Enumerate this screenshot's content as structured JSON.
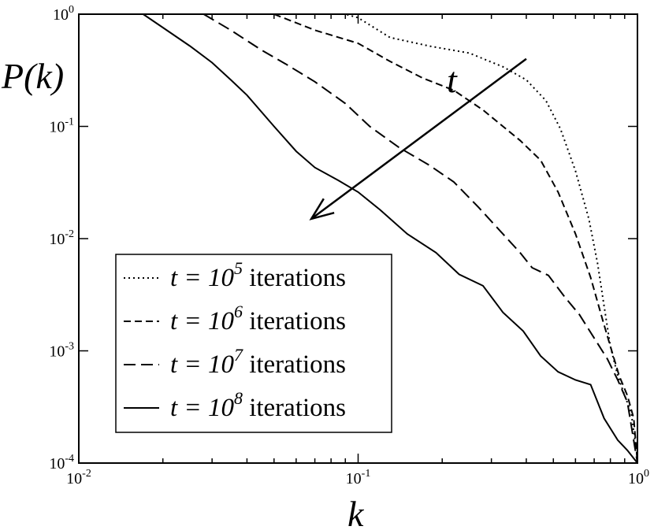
{
  "chart_data": {
    "type": "line",
    "xlabel": "k",
    "ylabel": "P(k)",
    "xscale": "log",
    "yscale": "log",
    "xlim": [
      0.01,
      1
    ],
    "ylim": [
      0.0001,
      1
    ],
    "grid": false,
    "legend_position": "bottom-left",
    "x_ticks": [
      {
        "base": "10",
        "exp": "-2",
        "value": 0.01
      },
      {
        "base": "10",
        "exp": "-1",
        "value": 0.1
      },
      {
        "base": "10",
        "exp": "0",
        "value": 1
      }
    ],
    "y_ticks": [
      {
        "base": "10",
        "exp": "-4",
        "value": 0.0001
      },
      {
        "base": "10",
        "exp": "-3",
        "value": 0.001
      },
      {
        "base": "10",
        "exp": "-2",
        "value": 0.01
      },
      {
        "base": "10",
        "exp": "-1",
        "value": 0.1
      },
      {
        "base": "10",
        "exp": "0",
        "value": 1
      }
    ],
    "annotation": {
      "text": "t",
      "arrow_from": [
        0.4,
        0.4
      ],
      "arrow_to": [
        0.068,
        0.015
      ]
    },
    "series": [
      {
        "label": {
          "t": "t",
          "eq": "= 10",
          "exp": "5",
          "unit": "iterations"
        },
        "style": "dotted",
        "x": [
          0.055,
          0.09,
          0.1,
          0.13,
          0.18,
          0.25,
          0.33,
          0.4,
          0.47,
          0.53,
          0.6,
          0.67,
          0.72,
          0.76,
          0.8,
          0.85,
          0.9,
          0.95,
          1.0
        ],
        "y": [
          1.0,
          1.0,
          0.93,
          0.62,
          0.52,
          0.45,
          0.34,
          0.26,
          0.17,
          0.095,
          0.04,
          0.015,
          0.006,
          0.0025,
          0.0011,
          0.0006,
          0.0004,
          0.00028,
          0.00011
        ]
      },
      {
        "label": {
          "t": "t",
          "eq": "= 10",
          "exp": "6",
          "unit": "iterations"
        },
        "style": "dashed",
        "x": [
          0.05,
          0.07,
          0.1,
          0.13,
          0.17,
          0.22,
          0.28,
          0.33,
          0.38,
          0.45,
          0.52,
          0.6,
          0.68,
          0.75,
          0.8,
          0.86,
          0.92,
          0.97,
          1.0
        ],
        "y": [
          1.0,
          0.72,
          0.55,
          0.38,
          0.27,
          0.21,
          0.14,
          0.1,
          0.075,
          0.05,
          0.026,
          0.011,
          0.0045,
          0.0019,
          0.0011,
          0.0006,
          0.0004,
          0.00025,
          0.0001
        ]
      },
      {
        "label": {
          "t": "t",
          "eq": "= 10",
          "exp": "7",
          "unit": "iterations"
        },
        "style": "longdash",
        "x": [
          0.028,
          0.035,
          0.045,
          0.055,
          0.07,
          0.09,
          0.11,
          0.14,
          0.18,
          0.22,
          0.27,
          0.33,
          0.38,
          0.42,
          0.48,
          0.55,
          0.62,
          0.7,
          0.78,
          0.85,
          0.92,
          1.0
        ],
        "y": [
          1.0,
          0.72,
          0.48,
          0.36,
          0.25,
          0.16,
          0.1,
          0.065,
          0.045,
          0.032,
          0.019,
          0.011,
          0.0075,
          0.0055,
          0.0047,
          0.003,
          0.0021,
          0.0013,
          0.00085,
          0.00055,
          0.00035,
          0.0001
        ]
      },
      {
        "label": {
          "t": "t",
          "eq": "= 10",
          "exp": "8",
          "unit": "iterations"
        },
        "style": "solid",
        "x": [
          0.017,
          0.02,
          0.025,
          0.03,
          0.035,
          0.04,
          0.05,
          0.06,
          0.07,
          0.085,
          0.1,
          0.12,
          0.15,
          0.19,
          0.23,
          0.28,
          0.33,
          0.39,
          0.45,
          0.52,
          0.6,
          0.68,
          0.76,
          0.85,
          0.92,
          1.0
        ],
        "y": [
          1.0,
          0.76,
          0.52,
          0.37,
          0.26,
          0.19,
          0.1,
          0.06,
          0.043,
          0.033,
          0.026,
          0.018,
          0.011,
          0.0075,
          0.0048,
          0.0038,
          0.0022,
          0.0015,
          0.0009,
          0.00065,
          0.00055,
          0.0005,
          0.00025,
          0.00016,
          0.00013,
          0.0001
        ]
      }
    ]
  }
}
